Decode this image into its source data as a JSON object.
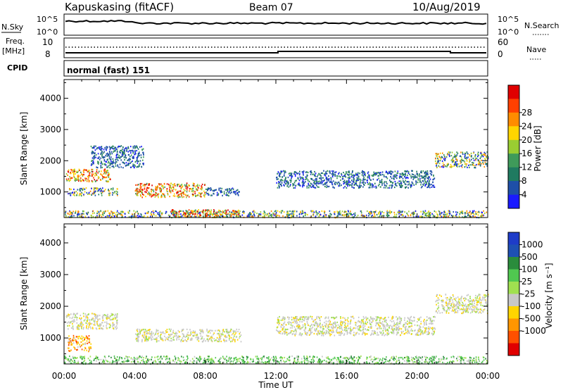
{
  "header": {
    "site": "Kapuskasing (fitACF)",
    "beam": "Beam 07",
    "date": "10/Aug/2019"
  },
  "noise_panel": {
    "left_label": "N.Sky",
    "right_label": "N.Search",
    "y_top_tick": "10^5",
    "y_bottom_tick": "10^0"
  },
  "freq_panel": {
    "left_label_1": "Freq.",
    "left_label_2": "[MHz]",
    "left_tick_top": "10",
    "left_tick_bottom": "8",
    "right_label": "Nave",
    "right_tick_top": "60",
    "right_tick_bottom": "0"
  },
  "cpid_panel": {
    "left_label": "CPID",
    "value": "normal (fast) 151"
  },
  "axes": {
    "ylabel": "Slant Range [km]",
    "xlabel": "Time UT",
    "x_ticks": [
      "00:00",
      "04:00",
      "08:00",
      "12:00",
      "16:00",
      "20:00",
      "00:00"
    ],
    "y_ticks": [
      "1000",
      "2000",
      "3000",
      "4000"
    ]
  },
  "chart_data": [
    {
      "type": "heatmap",
      "title": "",
      "xlabel": "Time UT",
      "ylabel": "Slant Range [km]",
      "xlim": [
        0,
        24
      ],
      "ylim": [
        180,
        4600
      ],
      "colorbar": {
        "label": "Power [dB]",
        "ticks": [
          "4",
          "8",
          "12",
          "16",
          "20",
          "24",
          "28"
        ],
        "colors": [
          "#1a1aff",
          "#1e4fa8",
          "#1f7a60",
          "#3f9a5a",
          "#9acd32",
          "#ffd500",
          "#ff8c00",
          "#ff4000",
          "#e00000"
        ]
      },
      "scatter_regions": [
        {
          "t0": 0.0,
          "t1": 24.0,
          "r0": 200,
          "r1": 420,
          "level": "mixed"
        },
        {
          "t0": 0.1,
          "t1": 2.6,
          "r0": 1350,
          "r1": 1750,
          "level": "high"
        },
        {
          "t0": 0.2,
          "t1": 3.0,
          "r0": 900,
          "r1": 1150,
          "level": "mixed"
        },
        {
          "t0": 4.0,
          "t1": 8.0,
          "r0": 850,
          "r1": 1300,
          "level": "high"
        },
        {
          "t0": 8.0,
          "t1": 10.0,
          "r0": 900,
          "r1": 1150,
          "level": "low"
        },
        {
          "t0": 6.0,
          "t1": 10.0,
          "r0": 220,
          "r1": 450,
          "level": "high"
        },
        {
          "t0": 12.0,
          "t1": 21.0,
          "r0": 1150,
          "r1": 1700,
          "level": "low"
        },
        {
          "t0": 21.0,
          "t1": 24.0,
          "r0": 1800,
          "r1": 2300,
          "level": "mixed"
        },
        {
          "t0": 1.5,
          "t1": 4.5,
          "r0": 1800,
          "r1": 2500,
          "level": "low"
        }
      ]
    },
    {
      "type": "heatmap",
      "title": "",
      "xlabel": "Time UT",
      "ylabel": "Slant Range [km]",
      "xlim": [
        0,
        24
      ],
      "ylim": [
        180,
        4600
      ],
      "colorbar": {
        "label": "Velocity [m s⁻¹]",
        "ticks": [
          "1000",
          "500",
          "100",
          "25",
          "-25",
          "-100",
          "-500",
          "-1000"
        ],
        "colors": [
          "#1e3cc8",
          "#1e50b4",
          "#2a8c3c",
          "#50c850",
          "#a0e050",
          "#c8c8c8",
          "#ffd500",
          "#ff9600",
          "#ff5000",
          "#e00000"
        ]
      },
      "scatter_regions": [
        {
          "t0": 0.0,
          "t1": 24.0,
          "r0": 200,
          "r1": 450,
          "level": "green"
        },
        {
          "t0": 0.1,
          "t1": 3.0,
          "r0": 1300,
          "r1": 1800,
          "level": "gray"
        },
        {
          "t0": 0.2,
          "t1": 1.5,
          "r0": 600,
          "r1": 1100,
          "level": "orange"
        },
        {
          "t0": 4.0,
          "t1": 10.0,
          "r0": 900,
          "r1": 1300,
          "level": "gray"
        },
        {
          "t0": 12.0,
          "t1": 21.0,
          "r0": 1100,
          "r1": 1700,
          "level": "gray"
        },
        {
          "t0": 21.0,
          "t1": 24.0,
          "r0": 1800,
          "r1": 2400,
          "level": "gray"
        }
      ]
    }
  ]
}
